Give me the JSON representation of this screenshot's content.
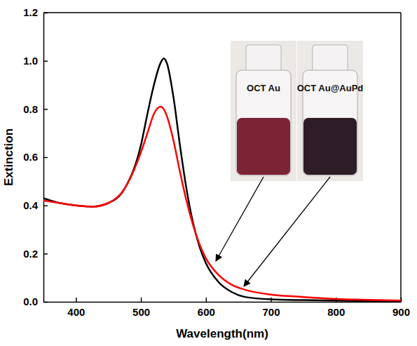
{
  "chart_data": {
    "type": "line",
    "x_label": "Wavelength(nm)",
    "y_label": "Extinction",
    "x": [
      350,
      375,
      400,
      425,
      450,
      475,
      500,
      510,
      520,
      530,
      535,
      540,
      550,
      560,
      570,
      580,
      590,
      600,
      620,
      640,
      660,
      700,
      750,
      800,
      850,
      900
    ],
    "series": [
      {
        "name": "OCT Au",
        "color": "#000000",
        "values": [
          0.43,
          0.41,
          0.4,
          0.395,
          0.41,
          0.47,
          0.65,
          0.78,
          0.9,
          0.99,
          1.01,
          0.99,
          0.85,
          0.65,
          0.47,
          0.33,
          0.23,
          0.16,
          0.08,
          0.04,
          0.02,
          0.01,
          0.007,
          0.005,
          0.003,
          0.002
        ]
      },
      {
        "name": "OCT Au@AuPd",
        "color": "#ff0000",
        "values": [
          0.42,
          0.41,
          0.4,
          0.395,
          0.41,
          0.47,
          0.62,
          0.7,
          0.78,
          0.81,
          0.8,
          0.77,
          0.67,
          0.54,
          0.42,
          0.32,
          0.24,
          0.18,
          0.11,
          0.07,
          0.05,
          0.03,
          0.02,
          0.012,
          0.008,
          0.005
        ]
      }
    ],
    "xlim": [
      350,
      900
    ],
    "xticks": [
      400,
      500,
      600,
      700,
      800,
      900
    ],
    "ylim": [
      0,
      1.2
    ],
    "yticks": [
      {
        "value": 0,
        "label": "0.0"
      },
      0.2,
      0.4,
      0.6,
      0.8,
      {
        "value": 1,
        "label": "1.0"
      },
      1.2
    ]
  }
}
